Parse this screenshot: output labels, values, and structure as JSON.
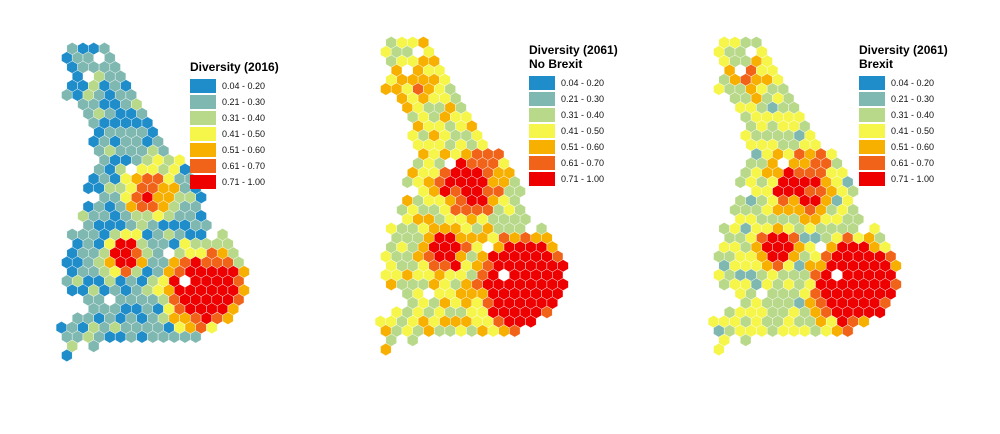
{
  "maps": [
    {
      "title": "Diversity (2016)",
      "subtitle": "",
      "scenario": "2016"
    },
    {
      "title": "Diversity (2061)",
      "subtitle": "No Brexit",
      "scenario": "2061-no-brexit"
    },
    {
      "title": "Diversity (2061)",
      "subtitle": "Brexit",
      "scenario": "2061-brexit"
    }
  ],
  "legend": {
    "classes": [
      {
        "label": "0.04 - 0.20",
        "color": "#1f8dc9"
      },
      {
        "label": "0.21 - 0.30",
        "color": "#7fb8b1"
      },
      {
        "label": "0.31 - 0.40",
        "color": "#b9d98a"
      },
      {
        "label": "0.41 - 0.50",
        "color": "#f5f54a"
      },
      {
        "label": "0.51 - 0.60",
        "color": "#f7b000"
      },
      {
        "label": "0.61 - 0.70",
        "color": "#f2631a"
      },
      {
        "label": "0.71 - 1.00",
        "color": "#ee0000"
      }
    ]
  }
}
